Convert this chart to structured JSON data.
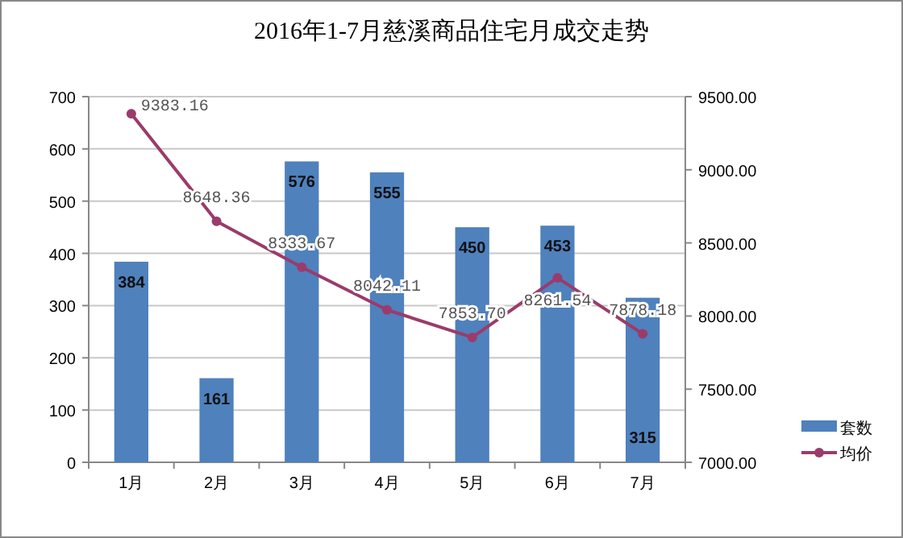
{
  "chart_data": {
    "type": "bar",
    "title": "2016年1-7月慈溪商品住宅月成交走势",
    "categories": [
      "1月",
      "2月",
      "3月",
      "4月",
      "5月",
      "6月",
      "7月"
    ],
    "series": [
      {
        "name": "套数",
        "color": "#4f81bd",
        "values": [
          384,
          161,
          576,
          555,
          450,
          453,
          315
        ],
        "value_labels": [
          "384",
          "161",
          "576",
          "555",
          "450",
          "453",
          "315"
        ]
      },
      {
        "name": "均价",
        "type": "line",
        "axis": "y2",
        "color": "#9b3b6b",
        "marker": "circle",
        "values": [
          9383.16,
          8648.36,
          8333.67,
          8042.11,
          7853.7,
          8261.54,
          7878.18
        ],
        "value_labels": [
          "9383.16",
          "8648.36",
          "8333.67",
          "8042.11",
          "7853.70",
          "8261.54",
          "7878.18"
        ]
      }
    ],
    "ylim": [
      0,
      700
    ],
    "yticks": [
      0,
      100,
      200,
      300,
      400,
      500,
      600,
      700
    ],
    "y2lim": [
      7000,
      9500
    ],
    "y2ticks": [
      {
        "value": 7000,
        "label": "7000.00"
      },
      {
        "value": 7500,
        "label": "7500.00"
      },
      {
        "value": 8000,
        "label": "8000.00"
      },
      {
        "value": 8500,
        "label": "8500.00"
      },
      {
        "value": 9000,
        "label": "9000.00"
      },
      {
        "value": 9500,
        "label": "9500.00"
      }
    ],
    "grid": "y",
    "legend": "right"
  }
}
